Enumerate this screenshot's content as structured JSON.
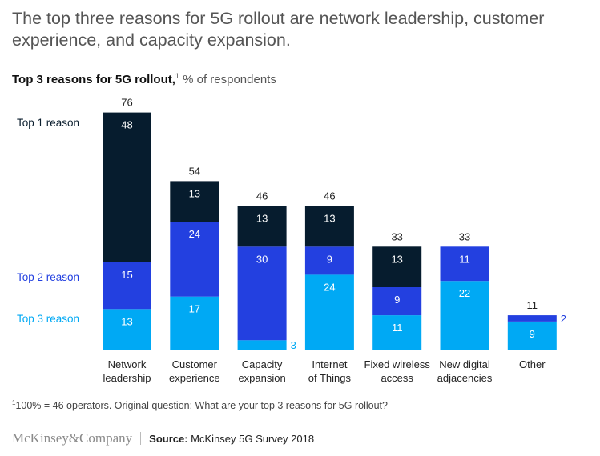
{
  "headline": "The top three reasons for 5G rollout are network leadership, customer experience, and capacity expansion.",
  "subtitle": {
    "bold": "Top 3 reasons for 5G rollout,",
    "sup": "1",
    "unit": " % of respondents"
  },
  "footnote": {
    "sup": "1",
    "text": "100% = 46 operators. Original question: What are your top 3 reasons for 5G rollout?"
  },
  "footer": {
    "logo": "McKinsey&Company",
    "source_label": "Source:",
    "source_text": " McKinsey 5G Survey 2018"
  },
  "colors": {
    "top1": "#061c2e",
    "top2": "#2340e0",
    "top3": "#00a9f4",
    "axis": "#666666",
    "label": "#222222"
  },
  "chart_data": {
    "type": "bar",
    "stacked": true,
    "title": "Top 3 reasons for 5G rollout, % of respondents",
    "categories": [
      [
        "Network",
        "leadership"
      ],
      [
        "Customer",
        "experience"
      ],
      [
        "Capacity",
        "expansion"
      ],
      [
        "Internet",
        "of Things"
      ],
      [
        "Fixed wireless",
        "access"
      ],
      [
        "New digital",
        "adjacencies"
      ],
      [
        "Other"
      ]
    ],
    "series": [
      {
        "name": "Top 3 reason",
        "color": "#00a9f4",
        "values": [
          13,
          17,
          3,
          24,
          11,
          22,
          9
        ]
      },
      {
        "name": "Top 2 reason",
        "color": "#2340e0",
        "values": [
          15,
          24,
          30,
          9,
          9,
          11,
          2
        ]
      },
      {
        "name": "Top 1 reason",
        "color": "#061c2e",
        "values": [
          48,
          13,
          13,
          13,
          13,
          0,
          0
        ]
      }
    ],
    "totals": [
      76,
      54,
      46,
      46,
      33,
      33,
      11
    ],
    "legend": [
      "Top 1 reason",
      "Top 2 reason",
      "Top 3 reason"
    ],
    "legend_placement": "left",
    "ylim": [
      0,
      76
    ],
    "grid": false,
    "xlabel": "",
    "ylabel": ""
  }
}
